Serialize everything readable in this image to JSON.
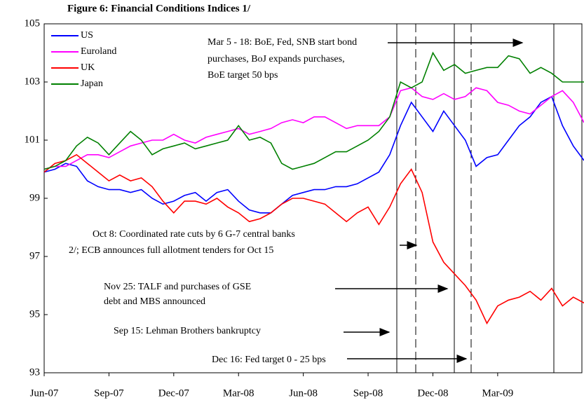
{
  "chart_data": {
    "type": "line",
    "title": "Figure 6: Financial Conditions Indices 1/",
    "categories": [
      "Jun-07",
      null,
      null,
      null,
      null,
      null,
      "Sep-07",
      null,
      null,
      null,
      null,
      null,
      "Dec-07",
      null,
      null,
      null,
      null,
      null,
      "Mar-08",
      null,
      null,
      null,
      null,
      null,
      "Jun-08",
      null,
      null,
      null,
      null,
      null,
      "Sep-08",
      null,
      null,
      null,
      null,
      null,
      "Dec-08",
      null,
      null,
      null,
      null,
      null,
      "Mar-09",
      null,
      null,
      null,
      null,
      null,
      null,
      null,
      null
    ],
    "series": [
      {
        "name": "US",
        "color": "#0000ff",
        "values": [
          99.9,
          100.0,
          100.2,
          100.1,
          99.6,
          99.4,
          99.3,
          99.3,
          99.2,
          99.3,
          99.0,
          98.8,
          98.9,
          99.1,
          99.2,
          98.9,
          99.2,
          99.3,
          98.9,
          98.6,
          98.5,
          98.5,
          98.8,
          99.1,
          99.2,
          99.3,
          99.3,
          99.4,
          99.4,
          99.5,
          99.7,
          99.9,
          100.5,
          101.5,
          102.3,
          101.8,
          101.3,
          102.0,
          101.5,
          101.0,
          100.1,
          100.4,
          100.5,
          101.0,
          101.5,
          101.8,
          102.3,
          102.5,
          101.5,
          100.8,
          100.3
        ]
      },
      {
        "name": "Euroland",
        "color": "#ff00ff",
        "values": [
          100.0,
          100.1,
          100.1,
          100.3,
          100.5,
          100.5,
          100.4,
          100.6,
          100.8,
          100.9,
          101.0,
          101.0,
          101.2,
          101.0,
          100.9,
          101.1,
          101.2,
          101.3,
          101.4,
          101.2,
          101.3,
          101.4,
          101.6,
          101.7,
          101.6,
          101.8,
          101.8,
          101.6,
          101.4,
          101.5,
          101.5,
          101.5,
          101.8,
          102.7,
          102.8,
          102.5,
          102.4,
          102.6,
          102.4,
          102.5,
          102.8,
          102.7,
          102.3,
          102.2,
          102.0,
          101.9,
          102.2,
          102.5,
          102.7,
          102.3,
          101.6
        ]
      },
      {
        "name": "UK",
        "color": "#ff0000",
        "values": [
          99.9,
          100.2,
          100.3,
          100.5,
          100.2,
          99.9,
          99.6,
          99.8,
          99.6,
          99.7,
          99.4,
          98.9,
          98.5,
          98.9,
          98.9,
          98.8,
          99.0,
          98.7,
          98.5,
          98.2,
          98.3,
          98.5,
          98.8,
          99.0,
          99.0,
          98.9,
          98.8,
          98.5,
          98.2,
          98.5,
          98.7,
          98.1,
          98.7,
          99.5,
          100.0,
          99.2,
          97.5,
          96.8,
          96.4,
          96.0,
          95.5,
          94.7,
          95.3,
          95.5,
          95.6,
          95.8,
          95.5,
          95.9,
          95.3,
          95.6,
          95.4
        ]
      },
      {
        "name": "Japan",
        "color": "#008000",
        "values": [
          100.0,
          100.1,
          100.3,
          100.8,
          101.1,
          100.9,
          100.5,
          100.9,
          101.3,
          101.0,
          100.5,
          100.7,
          100.8,
          100.9,
          100.7,
          100.8,
          100.9,
          101.0,
          101.5,
          101.0,
          101.1,
          100.9,
          100.2,
          100.0,
          100.1,
          100.2,
          100.4,
          100.6,
          100.6,
          100.8,
          101.0,
          101.3,
          101.8,
          103.0,
          102.8,
          103.0,
          104.0,
          103.4,
          103.6,
          103.3,
          103.4,
          103.5,
          103.5,
          103.9,
          103.8,
          103.3,
          103.5,
          103.3,
          103.0,
          103.0,
          103.0
        ]
      }
    ],
    "ylim": [
      93,
      105
    ],
    "yticks": [
      93,
      95,
      97,
      99,
      101,
      103,
      105
    ],
    "grid": false,
    "annotations": [
      [
        "Mar 5 - 18: BoE, Fed, SNB start bond",
        "purchases, BoJ expands purchases,",
        "BoE target 50 bps"
      ],
      [
        "Oct 8: Coordinated rate cuts by 6 G-7 central banks",
        "2/; ECB announces full allotment tenders for Oct 15"
      ],
      [
        "Nov 25: TALF and purchases of GSE",
        "debt and MBS announced"
      ],
      [
        "Sep 15: Lehman Brothers bankruptcy"
      ],
      [
        "Dec 16: Fed target 0 - 25 bps"
      ]
    ]
  }
}
